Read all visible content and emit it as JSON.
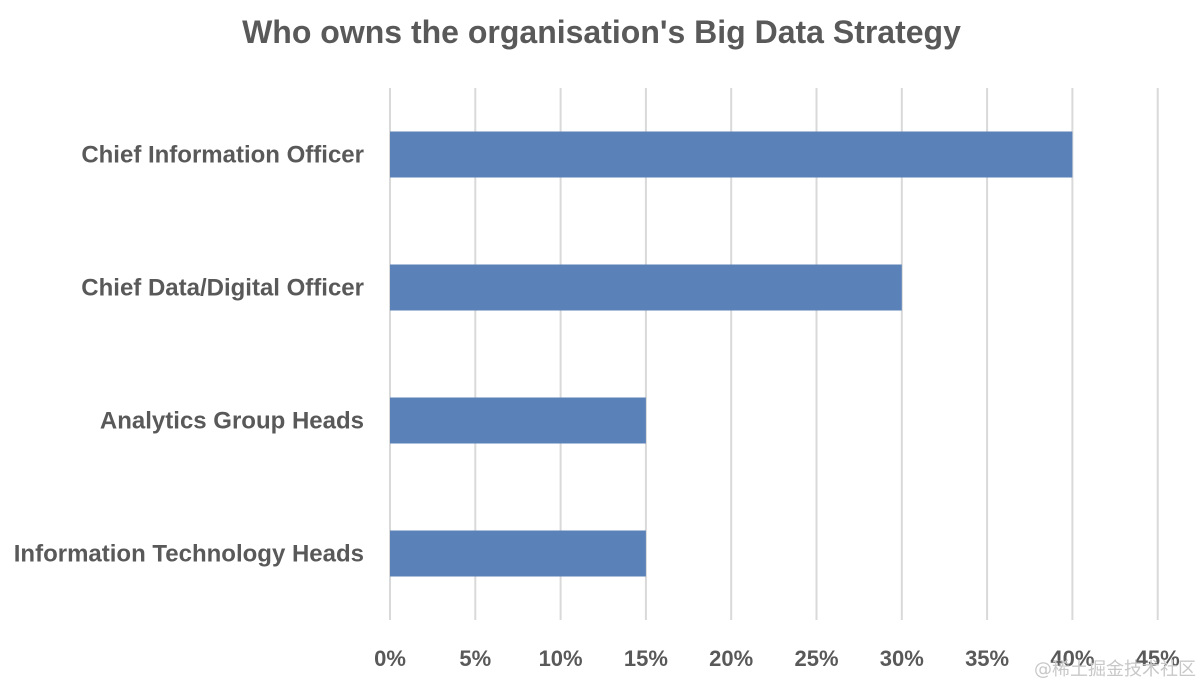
{
  "chart_data": {
    "type": "bar",
    "orientation": "horizontal",
    "title": "Who owns the organisation's Big Data Strategy",
    "categories": [
      "Chief Information Officer",
      "Chief Data/Digital Officer",
      "Analytics Group Heads",
      "Information Technology Heads"
    ],
    "values": [
      40,
      30,
      15,
      15
    ],
    "xlim": [
      0,
      45
    ],
    "xticks": [
      0,
      5,
      10,
      15,
      20,
      25,
      30,
      35,
      40,
      45
    ],
    "tick_labels": [
      "0%",
      "5%",
      "10%",
      "15%",
      "20%",
      "25%",
      "30%",
      "35%",
      "40%",
      "45%"
    ],
    "grid": true,
    "bar_color": "#5a82b8"
  },
  "watermark": "@稀土掘金技术社区"
}
